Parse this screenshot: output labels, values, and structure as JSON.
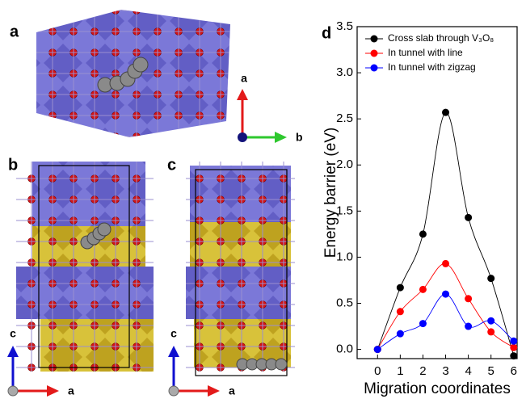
{
  "figure": {
    "panels": [
      "a",
      "b",
      "c"
    ],
    "axes_a": {
      "vertical": "a",
      "horizontal": "b"
    },
    "axes_b": {
      "vertical": "c",
      "horizontal": "a"
    },
    "axes_c": {
      "vertical": "c",
      "horizontal": "a"
    }
  },
  "chart_data": {
    "type": "line",
    "panel_label": "d",
    "x_label": "Migration coordinates",
    "y_label": "Energy barrier (eV)",
    "x": [
      0,
      1,
      2,
      3,
      4,
      5,
      6
    ],
    "series": [
      {
        "name": "Cross slab through V₃O₈",
        "color": "#000000",
        "values": [
          0.0,
          0.67,
          1.25,
          2.57,
          1.43,
          0.77,
          -0.07
        ]
      },
      {
        "name": "In tunnel with line",
        "color": "#ff0000",
        "values": [
          0.0,
          0.41,
          0.65,
          0.93,
          0.55,
          0.19,
          0.02
        ]
      },
      {
        "name": "In tunnel with zigzag",
        "color": "#0000ff",
        "values": [
          0.0,
          0.17,
          0.28,
          0.6,
          0.25,
          0.31,
          0.09
        ]
      }
    ],
    "xlim": [
      -0.9,
      6.15
    ],
    "ylim": [
      -0.1,
      3.5
    ],
    "xticks": [
      0,
      1,
      2,
      3,
      4,
      5,
      6
    ],
    "yticks": [
      {
        "value": 0,
        "label": "0.0"
      },
      {
        "value": 0.5,
        "label": "0.5"
      },
      {
        "value": 1,
        "label": "1.0"
      },
      {
        "value": 1.5,
        "label": "1.5"
      },
      {
        "value": 2,
        "label": "2.0"
      },
      {
        "value": 2.5,
        "label": "2.5"
      },
      {
        "value": 3,
        "label": "3.0"
      },
      {
        "value": 3.5,
        "label": "3.5"
      }
    ],
    "legend": "upper left",
    "smooth": true,
    "markers": true
  }
}
